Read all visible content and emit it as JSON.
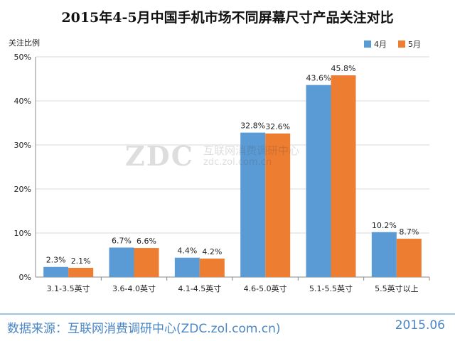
{
  "footer": {
    "source": "数据来源：互联网消费调研中心(ZDC.zol.com.cn)",
    "date": "2015.06"
  },
  "watermark": {
    "logo": "ZDC",
    "name": "互联网消费调研中心",
    "url": "zdc.zol.com.cn"
  },
  "colors": {
    "series_1": "#5b9bd5",
    "series_2": "#ed7d31",
    "grid": "#d9d9d9",
    "axis": "#888888"
  },
  "chart_data": {
    "type": "bar",
    "title": "2015年4-5月中国手机市场不同屏幕尺寸产品关注对比",
    "ylabel": "关注比例",
    "xlabel": "",
    "ylim": [
      0,
      50
    ],
    "yticks": [
      0,
      10,
      20,
      30,
      40,
      50
    ],
    "y_tick_labels": [
      "0%",
      "10%",
      "20%",
      "30%",
      "40%",
      "50%"
    ],
    "grid": true,
    "legend_position": "top-right",
    "categories": [
      "3.1-3.5英寸",
      "3.6-4.0英寸",
      "4.1-4.5英寸",
      "4.6-5.0英寸",
      "5.1-5.5英寸",
      "5.5英寸以上"
    ],
    "series": [
      {
        "name": "4月",
        "values": [
          2.3,
          6.7,
          4.4,
          32.8,
          43.6,
          10.2
        ],
        "labels": [
          "2.3%",
          "6.7%",
          "4.4%",
          "32.8%",
          "43.6%",
          "10.2%"
        ]
      },
      {
        "name": "5月",
        "values": [
          2.1,
          6.6,
          4.2,
          32.6,
          45.8,
          8.7
        ],
        "labels": [
          "2.1%",
          "6.6%",
          "4.2%",
          "32.6%",
          "45.8%",
          "8.7%"
        ]
      }
    ]
  }
}
